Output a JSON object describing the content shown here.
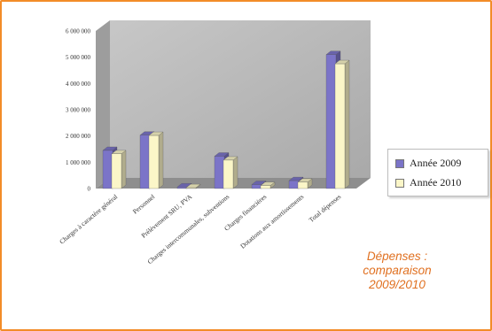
{
  "chart_data": {
    "type": "bar",
    "categories": [
      "Charges à caractère général",
      "Personnel",
      "Prélèvement SRU, PVA",
      "Charges intercommunales, subventions",
      "Charges financières",
      "Dotations aux amortissements",
      "Total dépenses"
    ],
    "series": [
      {
        "name": "Année 2009",
        "color": "#7b74c8",
        "values": [
          1450000,
          2030000,
          60000,
          1230000,
          150000,
          300000,
          5100000
        ]
      },
      {
        "name": "Année 2010",
        "color": "#fbf6c8",
        "values": [
          1320000,
          2020000,
          30000,
          1080000,
          110000,
          240000,
          4750000
        ]
      }
    ],
    "yticks": [
      "0",
      "1 000 000",
      "2 000 000",
      "3 000 000",
      "4 000 000",
      "5 000 000",
      "6 000 000"
    ],
    "ylim": [
      0,
      6000000
    ],
    "legend_position": "right",
    "grid": false
  },
  "caption": {
    "line1": "Dépenses :",
    "line2": "comparaison",
    "line3": "2009/2010"
  }
}
